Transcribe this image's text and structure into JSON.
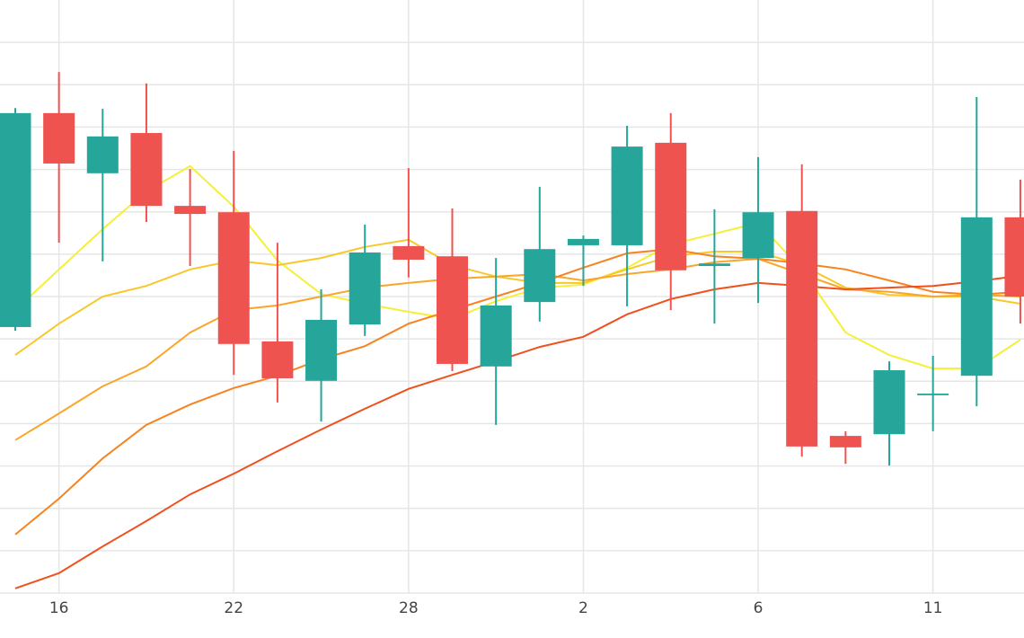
{
  "chart_data": {
    "type": "candlestick",
    "categories": [
      null,
      "16",
      null,
      null,
      null,
      "22",
      null,
      null,
      null,
      "28",
      null,
      null,
      null,
      "2",
      null,
      null,
      null,
      "6",
      null,
      null,
      null,
      "11",
      null,
      null
    ],
    "open": [
      62.8,
      113.3,
      99.1,
      108.6,
      91.4,
      89.9,
      59.4,
      50.1,
      63.4,
      81.9,
      79.5,
      53.5,
      68.7,
      82.1,
      82.1,
      106.3,
      77.2,
      79.1,
      90.2,
      37.1,
      37.5,
      46.7,
      51.3,
      88.7
    ],
    "high": [
      114.5,
      123.0,
      114.3,
      120.3,
      100.1,
      104.4,
      82.7,
      71.7,
      87.0,
      100.3,
      90.8,
      79.1,
      95.9,
      84.4,
      110.3,
      113.3,
      90.6,
      102.9,
      101.2,
      38.2,
      54.7,
      56.0,
      117.1,
      97.6
    ],
    "low": [
      61.9,
      82.7,
      78.3,
      87.6,
      77.2,
      51.5,
      45.0,
      40.5,
      60.7,
      74.5,
      52.4,
      39.7,
      64.1,
      72.5,
      67.7,
      66.8,
      63.6,
      68.5,
      32.2,
      30.5,
      30.1,
      38.2,
      44.1,
      63.6
    ],
    "close": [
      113.3,
      101.4,
      107.8,
      91.4,
      89.5,
      58.8,
      50.7,
      64.5,
      80.4,
      78.7,
      54.1,
      67.9,
      81.2,
      83.6,
      105.4,
      76.2,
      77.8,
      89.9,
      34.6,
      34.4,
      52.6,
      47.1,
      88.7,
      70.0
    ],
    "up_color": "#26a69a",
    "down_color": "#ef5350",
    "series": [
      {
        "color": "#f5ef36",
        "values": [
          66.8,
          76.4,
          85.9,
          94.8,
          100.8,
          91.2,
          78.5,
          70.6,
          68.3,
          66.4,
          64.7,
          68.9,
          72.1,
          72.8,
          76.8,
          82.3,
          84.8,
          87.4,
          76.4,
          61.5,
          56.2,
          53.0,
          53.0,
          59.8
        ]
      },
      {
        "color": "#f8c82a",
        "values": [
          56.2,
          63.6,
          70.0,
          72.5,
          76.4,
          78.5,
          77.4,
          79.1,
          81.7,
          83.4,
          77.4,
          74.7,
          73.2,
          73.2,
          76.4,
          79.5,
          80.6,
          80.6,
          77.4,
          72.1,
          70.4,
          70.0,
          70.0,
          68.3
        ]
      },
      {
        "color": "#f9a62a",
        "values": [
          36.1,
          42.4,
          48.8,
          53.5,
          61.5,
          66.8,
          67.9,
          70.0,
          72.1,
          73.2,
          74.2,
          74.7,
          75.3,
          73.8,
          75.3,
          76.4,
          78.1,
          78.9,
          75.3,
          71.7,
          71.1,
          70.0,
          70.4,
          70.0
        ]
      },
      {
        "color": "#f7831f",
        "values": [
          13.8,
          22.3,
          31.8,
          39.7,
          44.5,
          48.4,
          51.3,
          55.2,
          58.3,
          63.6,
          66.8,
          70.0,
          73.2,
          76.8,
          80.2,
          81.2,
          79.5,
          78.9,
          77.8,
          76.4,
          73.8,
          71.1,
          70.4,
          71.1
        ]
      },
      {
        "color": "#f0501e",
        "values": [
          1.1,
          4.7,
          11.0,
          17.0,
          23.3,
          28.2,
          33.5,
          38.6,
          43.5,
          48.2,
          51.5,
          54.7,
          58.1,
          60.5,
          65.8,
          69.4,
          71.7,
          73.2,
          72.5,
          71.7,
          72.1,
          72.5,
          73.6,
          74.9
        ]
      }
    ],
    "ylim": [
      0,
      140
    ],
    "yticks": [
      10,
      20,
      30,
      40,
      50,
      60,
      70,
      80,
      90,
      100,
      110,
      120,
      130
    ],
    "grid": true
  }
}
